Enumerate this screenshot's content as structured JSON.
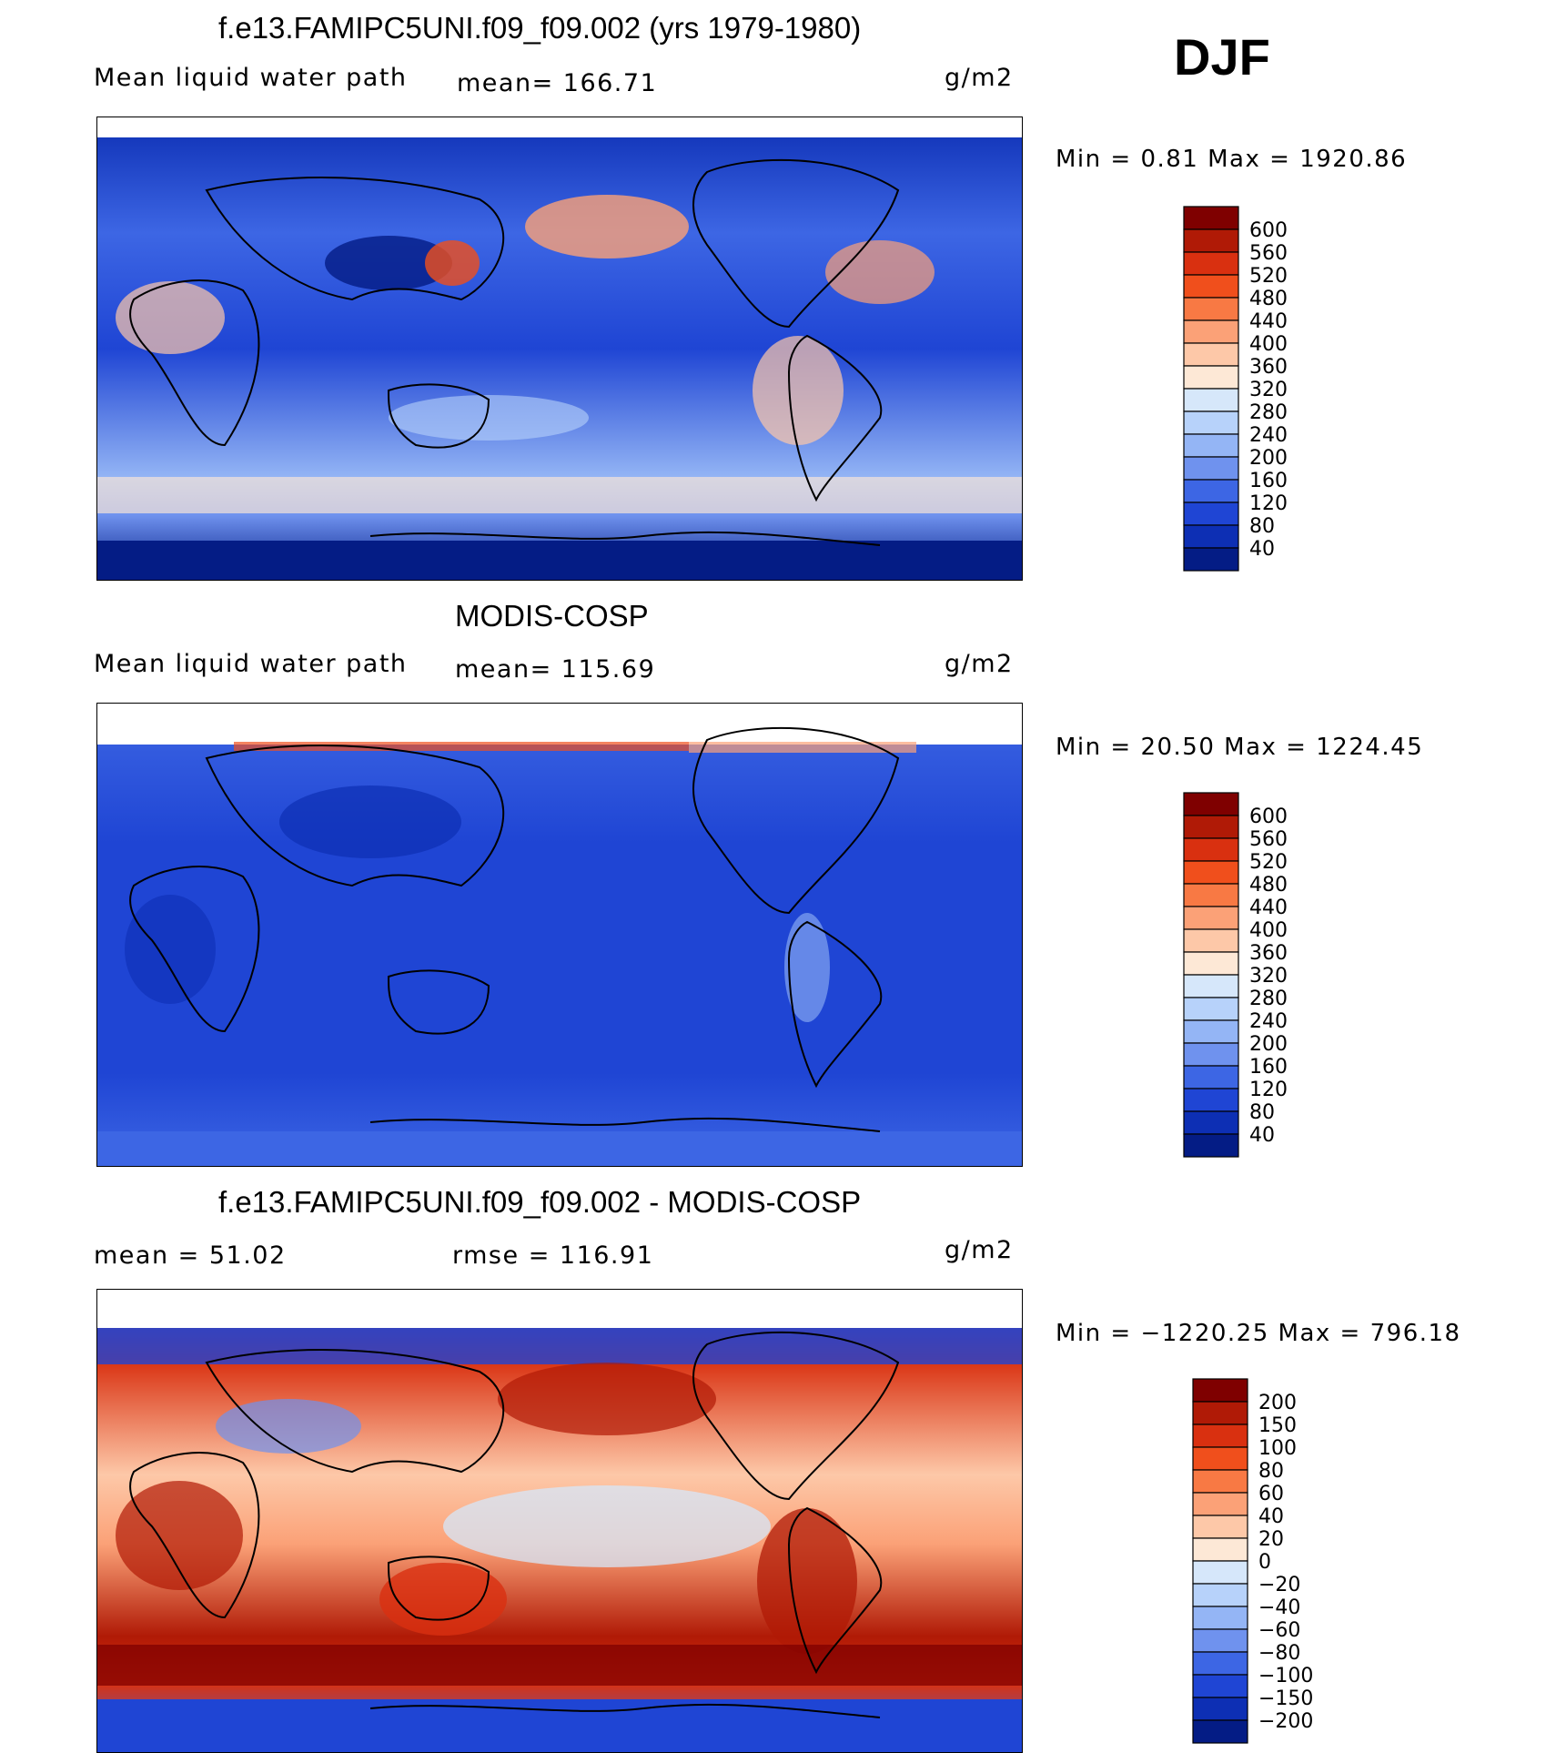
{
  "season": "DJF",
  "panels": [
    {
      "id": "model",
      "title": "f.e13.FAMIPC5UNI.f09_f09.002 (yrs 1979-1980)",
      "left_label": "Mean liquid water path",
      "center_label": "mean=  166.71",
      "units": "g/m2",
      "min": "0.81",
      "max": "1920.86",
      "colorbar": [
        "600",
        "560",
        "520",
        "480",
        "440",
        "400",
        "360",
        "320",
        "280",
        "240",
        "200",
        "160",
        "120",
        "80",
        "40"
      ],
      "colors": [
        "#7f0000",
        "#b01a06",
        "#d93010",
        "#f04f1c",
        "#f87944",
        "#fba177",
        "#fdc8a8",
        "#fde8d6",
        "#d6e7fa",
        "#b7d2fa",
        "#94b5f5",
        "#6f92ee",
        "#3d66e4",
        "#1f45d4",
        "#0d2fb4",
        "#041c85"
      ]
    },
    {
      "id": "obs",
      "title": "MODIS-COSP",
      "left_label": "Mean liquid water path",
      "center_label": "mean=  115.69",
      "units": "g/m2",
      "min": "20.50",
      "max": "1224.45",
      "colorbar": [
        "600",
        "560",
        "520",
        "480",
        "440",
        "400",
        "360",
        "320",
        "280",
        "240",
        "200",
        "160",
        "120",
        "80",
        "40"
      ],
      "colors": [
        "#7f0000",
        "#b01a06",
        "#d93010",
        "#f04f1c",
        "#f87944",
        "#fba177",
        "#fdc8a8",
        "#fde8d6",
        "#d6e7fa",
        "#b7d2fa",
        "#94b5f5",
        "#6f92ee",
        "#3d66e4",
        "#1f45d4",
        "#0d2fb4",
        "#041c85"
      ]
    },
    {
      "id": "diff",
      "title": "f.e13.FAMIPC5UNI.f09_f09.002 - MODIS-COSP",
      "left_label": "mean =   51.02",
      "center_label": "rmse  =  116.91",
      "units": "g/m2",
      "min": "−1220.25",
      "max": "796.18",
      "colorbar": [
        "200",
        "150",
        "100",
        "80",
        "60",
        "40",
        "20",
        "0",
        "−20",
        "−40",
        "−60",
        "−80",
        "−100",
        "−150",
        "−200"
      ],
      "colors": [
        "#7f0000",
        "#b01a06",
        "#d93010",
        "#f04f1c",
        "#f87944",
        "#fba177",
        "#fdc8a8",
        "#fde8d6",
        "#d6e7fa",
        "#b7d2fa",
        "#94b5f5",
        "#6f92ee",
        "#3d66e4",
        "#1f45d4",
        "#0d2fb4",
        "#041c85"
      ]
    }
  ]
}
